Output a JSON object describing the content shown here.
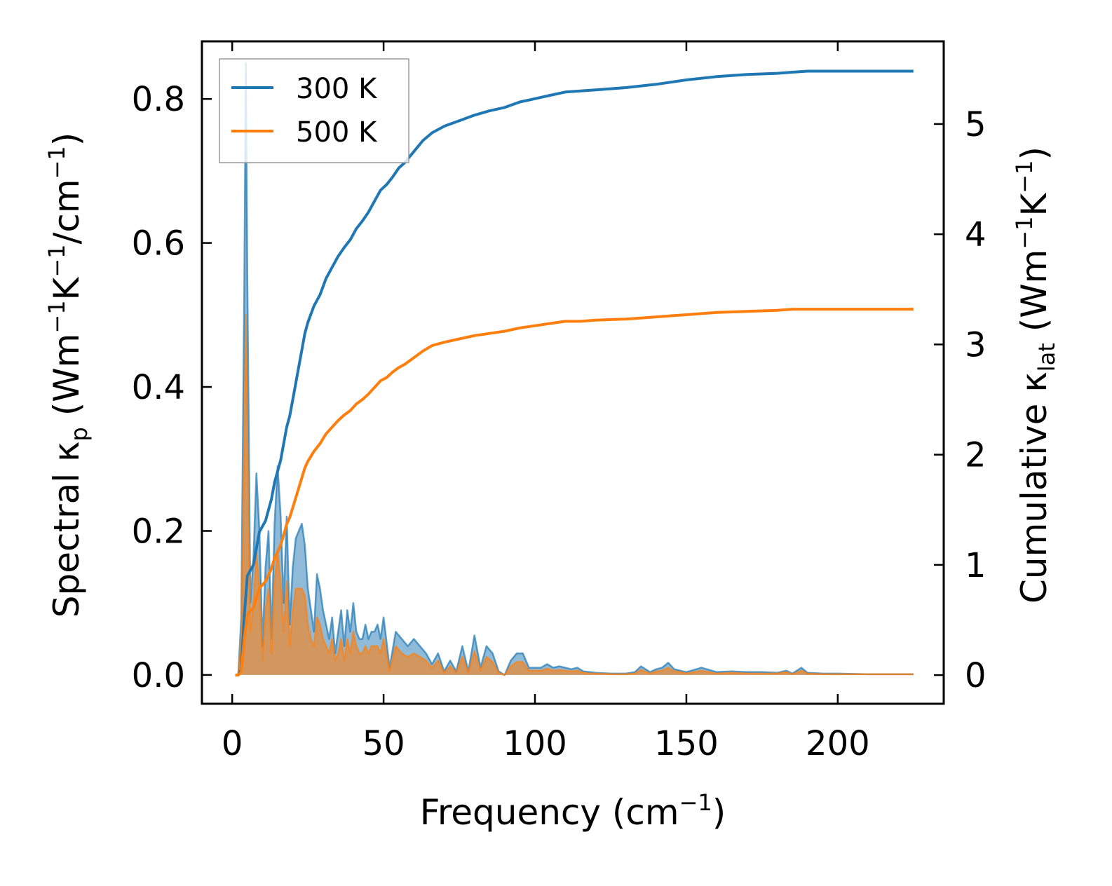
{
  "chart_data": {
    "type": "line",
    "xlabel": "Frequency (cm",
    "xlabel_sup": "−1",
    "xlabel_end": ")",
    "ylabel_left": {
      "a": "Spectral κ",
      "sub": "p",
      "b": " (Wm",
      "sup1": "−1",
      "c": "K",
      "sup2": "−1",
      "d": "/cm",
      "sup3": "−1",
      "e": ")"
    },
    "ylabel_right": {
      "a": "Cumulative κ",
      "sub": "lat",
      "b": " (Wm",
      "sup1": "−1",
      "c": "K",
      "sup2": "−1",
      "d": ")"
    },
    "xlim": [
      -10,
      235
    ],
    "ylim_left": [
      -0.04,
      0.88
    ],
    "ylim_right": [
      -0.26,
      5.75
    ],
    "xticks": [
      0,
      50,
      100,
      150,
      200
    ],
    "xtick_labels": [
      "0",
      "50",
      "100",
      "150",
      "200"
    ],
    "yticks_left": [
      0.0,
      0.2,
      0.4,
      0.6,
      0.8
    ],
    "ytick_labels_left": [
      "0.0",
      "0.2",
      "0.4",
      "0.6",
      "0.8"
    ],
    "yticks_right": [
      0,
      1,
      2,
      3,
      4,
      5
    ],
    "ytick_labels_right": [
      "0",
      "1",
      "2",
      "3",
      "4",
      "5"
    ],
    "legend_position": "top-left",
    "colors": {
      "T300": "#1f77b4",
      "T500": "#ff7f0e",
      "frame": "#000000"
    },
    "spectral": {
      "x": [
        1,
        2,
        3,
        4,
        4.5,
        5,
        6,
        7,
        8,
        9,
        10,
        11,
        12,
        13,
        14,
        15,
        16,
        17,
        18,
        19,
        20,
        21,
        22,
        23,
        24,
        25,
        26,
        27,
        28,
        29,
        30,
        31,
        32,
        33,
        34,
        35,
        36,
        37,
        38,
        39,
        40,
        41,
        42,
        43,
        44,
        45,
        46,
        47,
        48,
        49,
        50,
        52,
        54,
        56,
        58,
        60,
        62,
        64,
        66,
        68,
        70,
        72,
        74,
        76,
        78,
        80,
        82,
        84,
        86,
        88,
        90,
        92,
        94,
        96,
        98,
        100,
        102,
        104,
        106,
        108,
        110,
        112,
        114,
        116,
        118,
        120,
        125,
        130,
        133,
        135,
        138,
        140,
        142,
        144,
        146,
        148,
        150,
        155,
        160,
        165,
        170,
        175,
        180,
        183,
        185,
        188,
        190,
        195,
        200,
        210,
        220,
        225
      ],
      "series": [
        {
          "name": "300 K",
          "values": [
            0,
            0,
            0.08,
            0.55,
            0.85,
            0.55,
            0.1,
            0.16,
            0.28,
            0.2,
            0.04,
            0.15,
            0.2,
            0.05,
            0.21,
            0.29,
            0.22,
            0.1,
            0.22,
            0.07,
            0.15,
            0.19,
            0.2,
            0.21,
            0.18,
            0.12,
            0.09,
            0.06,
            0.14,
            0.12,
            0.09,
            0.07,
            0.05,
            0.08,
            0.03,
            0.06,
            0.09,
            0.04,
            0.09,
            0.06,
            0.1,
            0.06,
            0.05,
            0.05,
            0.07,
            0.05,
            0.06,
            0.06,
            0.07,
            0.05,
            0.08,
            0.01,
            0.06,
            0.05,
            0.04,
            0.05,
            0.04,
            0.03,
            0.015,
            0.03,
            0.005,
            0.02,
            0.005,
            0.04,
            0.005,
            0.055,
            0.01,
            0.04,
            0.03,
            0.005,
            0,
            0.02,
            0.03,
            0.03,
            0.01,
            0.01,
            0.01,
            0.015,
            0.01,
            0.012,
            0.01,
            0.008,
            0.01,
            0.005,
            0.004,
            0.003,
            0.002,
            0.002,
            0.004,
            0.012,
            0.004,
            0.008,
            0.01,
            0.017,
            0.008,
            0.006,
            0.004,
            0.01,
            0.004,
            0.005,
            0.004,
            0.004,
            0.003,
            0.006,
            0.002,
            0.01,
            0.003,
            0.002,
            0.002,
            0.001,
            0.001,
            0.001
          ]
        },
        {
          "name": "500 K",
          "values": [
            0,
            0,
            0.05,
            0.33,
            0.5,
            0.33,
            0.06,
            0.1,
            0.17,
            0.12,
            0.02,
            0.09,
            0.12,
            0.03,
            0.13,
            0.17,
            0.13,
            0.06,
            0.13,
            0.04,
            0.09,
            0.12,
            0.12,
            0.12,
            0.11,
            0.07,
            0.05,
            0.04,
            0.08,
            0.07,
            0.05,
            0.04,
            0.03,
            0.05,
            0.02,
            0.03,
            0.05,
            0.02,
            0.05,
            0.03,
            0.06,
            0.04,
            0.03,
            0.03,
            0.04,
            0.03,
            0.04,
            0.04,
            0.04,
            0.03,
            0.05,
            0.006,
            0.04,
            0.03,
            0.025,
            0.03,
            0.025,
            0.02,
            0.01,
            0.02,
            0.003,
            0.012,
            0.003,
            0.025,
            0.003,
            0.033,
            0.006,
            0.025,
            0.018,
            0.003,
            0,
            0.012,
            0.018,
            0.018,
            0.006,
            0.006,
            0.006,
            0.009,
            0.006,
            0.007,
            0.006,
            0.005,
            0.006,
            0.003,
            0.002,
            0.002,
            0.001,
            0.001,
            0.002,
            0.007,
            0.002,
            0.005,
            0.006,
            0.01,
            0.005,
            0.004,
            0.002,
            0.006,
            0.002,
            0.003,
            0.002,
            0.002,
            0.002,
            0.004,
            0.001,
            0.006,
            0.002,
            0.001,
            0.001,
            0.001,
            0.001,
            0.001
          ]
        }
      ]
    },
    "cumulative": {
      "x": [
        1,
        2,
        3,
        4,
        5,
        6,
        7,
        8,
        9,
        10,
        11,
        12,
        13,
        14,
        15,
        16,
        17,
        18,
        19,
        20,
        21,
        22,
        23,
        24,
        25,
        27,
        29,
        31,
        33,
        35,
        37,
        39,
        41,
        43,
        45,
        47,
        49,
        51,
        53,
        55,
        57,
        60,
        63,
        66,
        70,
        75,
        80,
        85,
        90,
        95,
        100,
        105,
        110,
        115,
        120,
        130,
        140,
        145,
        150,
        160,
        170,
        180,
        185,
        190,
        200,
        210,
        225
      ],
      "series": [
        {
          "name": "300 K",
          "values": [
            0,
            0,
            0.05,
            0.55,
            0.9,
            0.95,
            1.0,
            1.15,
            1.3,
            1.35,
            1.4,
            1.5,
            1.6,
            1.75,
            1.85,
            1.95,
            2.1,
            2.25,
            2.35,
            2.5,
            2.65,
            2.8,
            2.95,
            3.1,
            3.2,
            3.35,
            3.45,
            3.6,
            3.7,
            3.8,
            3.88,
            3.95,
            4.05,
            4.12,
            4.2,
            4.3,
            4.4,
            4.45,
            4.52,
            4.6,
            4.65,
            4.75,
            4.85,
            4.92,
            4.98,
            5.03,
            5.08,
            5.12,
            5.15,
            5.2,
            5.23,
            5.26,
            5.29,
            5.3,
            5.31,
            5.33,
            5.36,
            5.38,
            5.4,
            5.43,
            5.45,
            5.46,
            5.47,
            5.48,
            5.48,
            5.48,
            5.48
          ]
        },
        {
          "name": "500 K",
          "values": [
            0,
            0,
            0.03,
            0.33,
            0.55,
            0.58,
            0.61,
            0.7,
            0.79,
            0.82,
            0.85,
            0.91,
            0.97,
            1.06,
            1.12,
            1.18,
            1.27,
            1.37,
            1.43,
            1.52,
            1.61,
            1.7,
            1.79,
            1.88,
            1.94,
            2.03,
            2.1,
            2.19,
            2.25,
            2.31,
            2.36,
            2.4,
            2.46,
            2.5,
            2.55,
            2.61,
            2.67,
            2.7,
            2.75,
            2.79,
            2.82,
            2.88,
            2.94,
            2.99,
            3.02,
            3.05,
            3.08,
            3.1,
            3.12,
            3.15,
            3.17,
            3.19,
            3.21,
            3.21,
            3.22,
            3.23,
            3.25,
            3.26,
            3.27,
            3.29,
            3.3,
            3.31,
            3.32,
            3.32,
            3.32,
            3.32,
            3.32
          ]
        }
      ]
    }
  }
}
